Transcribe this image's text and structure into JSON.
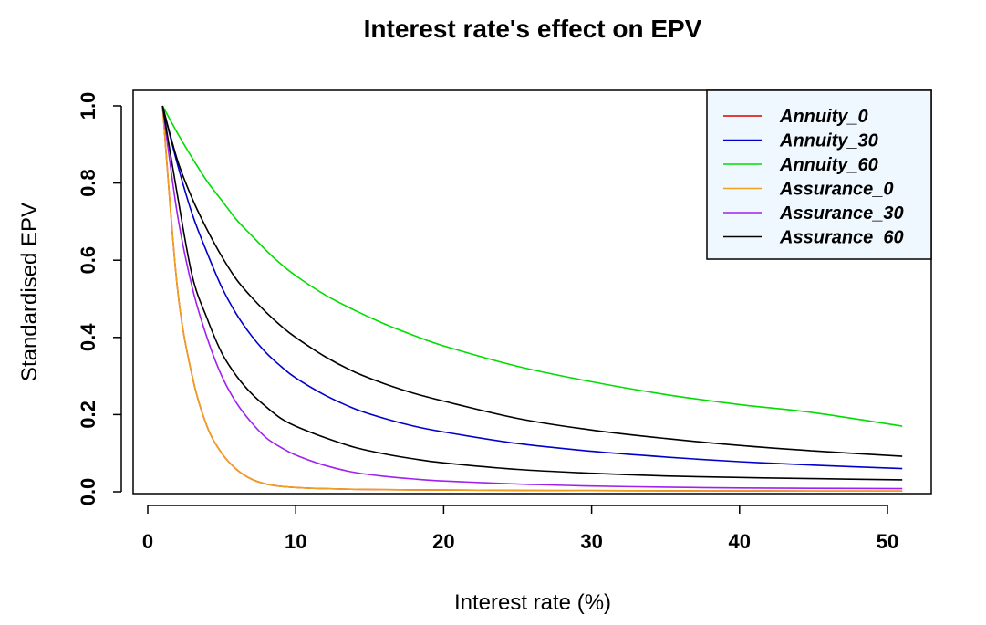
{
  "chart_data": {
    "type": "line",
    "title": "Interest rate's effect on EPV",
    "xlabel": "Interest rate (%)",
    "ylabel": "Standardised EPV",
    "xlim": [
      0,
      52
    ],
    "ylim": [
      0,
      1.04
    ],
    "xticks": [
      0,
      10,
      20,
      30,
      40,
      50
    ],
    "xtick_labels": [
      "0",
      "10",
      "20",
      "30",
      "40",
      "50"
    ],
    "yticks": [
      0.0,
      0.2,
      0.4,
      0.6,
      0.8,
      1.0
    ],
    "ytick_labels": [
      "0.0",
      "0.2",
      "0.4",
      "0.6",
      "0.8",
      "1.0"
    ],
    "grid": false,
    "legend_position": "top-right",
    "x": [
      1,
      2,
      3,
      4,
      5,
      6,
      7,
      8,
      9,
      10,
      12,
      14,
      16,
      18,
      20,
      25,
      30,
      35,
      40,
      45,
      51
    ],
    "series": [
      {
        "name": "Annuity_0",
        "color": "#dd0000",
        "values": [
          1.0,
          0.53,
          0.3,
          0.17,
          0.1,
          0.058,
          0.033,
          0.02,
          0.014,
          0.011,
          0.008,
          0.0065,
          0.0055,
          0.005,
          0.0045,
          0.0035,
          0.003,
          0.0025,
          0.0022,
          0.002,
          0.0018
        ]
      },
      {
        "name": "Annuity_30",
        "color": "#0000cc",
        "values": [
          1.0,
          0.85,
          0.72,
          0.62,
          0.53,
          0.46,
          0.405,
          0.36,
          0.325,
          0.295,
          0.25,
          0.215,
          0.19,
          0.17,
          0.155,
          0.125,
          0.105,
          0.09,
          0.078,
          0.069,
          0.06
        ]
      },
      {
        "name": "Annuity_60",
        "color": "#00dd00",
        "values": [
          1.0,
          0.93,
          0.865,
          0.805,
          0.755,
          0.705,
          0.665,
          0.625,
          0.59,
          0.56,
          0.51,
          0.47,
          0.435,
          0.405,
          0.378,
          0.325,
          0.285,
          0.252,
          0.226,
          0.205,
          0.17
        ]
      },
      {
        "name": "Assurance_0",
        "color": "#f0a020",
        "values": [
          1.0,
          0.53,
          0.3,
          0.17,
          0.1,
          0.058,
          0.033,
          0.02,
          0.014,
          0.011,
          0.008,
          0.0065,
          0.0055,
          0.005,
          0.0045,
          0.0035,
          0.003,
          0.0025,
          0.0022,
          0.002,
          0.0018
        ]
      },
      {
        "name": "Assurance_30",
        "color": "#a020f0",
        "values": [
          1.0,
          0.72,
          0.53,
          0.4,
          0.3,
          0.23,
          0.18,
          0.14,
          0.115,
          0.095,
          0.068,
          0.05,
          0.04,
          0.033,
          0.028,
          0.02,
          0.015,
          0.012,
          0.01,
          0.009,
          0.008
        ]
      },
      {
        "name": "Assurance_60",
        "color": "#000000",
        "values": [
          1.0,
          0.77,
          0.56,
          0.45,
          0.36,
          0.3,
          0.255,
          0.22,
          0.19,
          0.17,
          0.14,
          0.115,
          0.098,
          0.085,
          0.075,
          0.058,
          0.048,
          0.041,
          0.037,
          0.034,
          0.031
        ]
      },
      {
        "name": "",
        "color": "#000000",
        "values": [
          1.0,
          0.86,
          0.76,
          0.68,
          0.61,
          0.55,
          0.505,
          0.465,
          0.43,
          0.4,
          0.35,
          0.31,
          0.28,
          0.255,
          0.235,
          0.19,
          0.16,
          0.138,
          0.12,
          0.106,
          0.092
        ]
      }
    ]
  }
}
